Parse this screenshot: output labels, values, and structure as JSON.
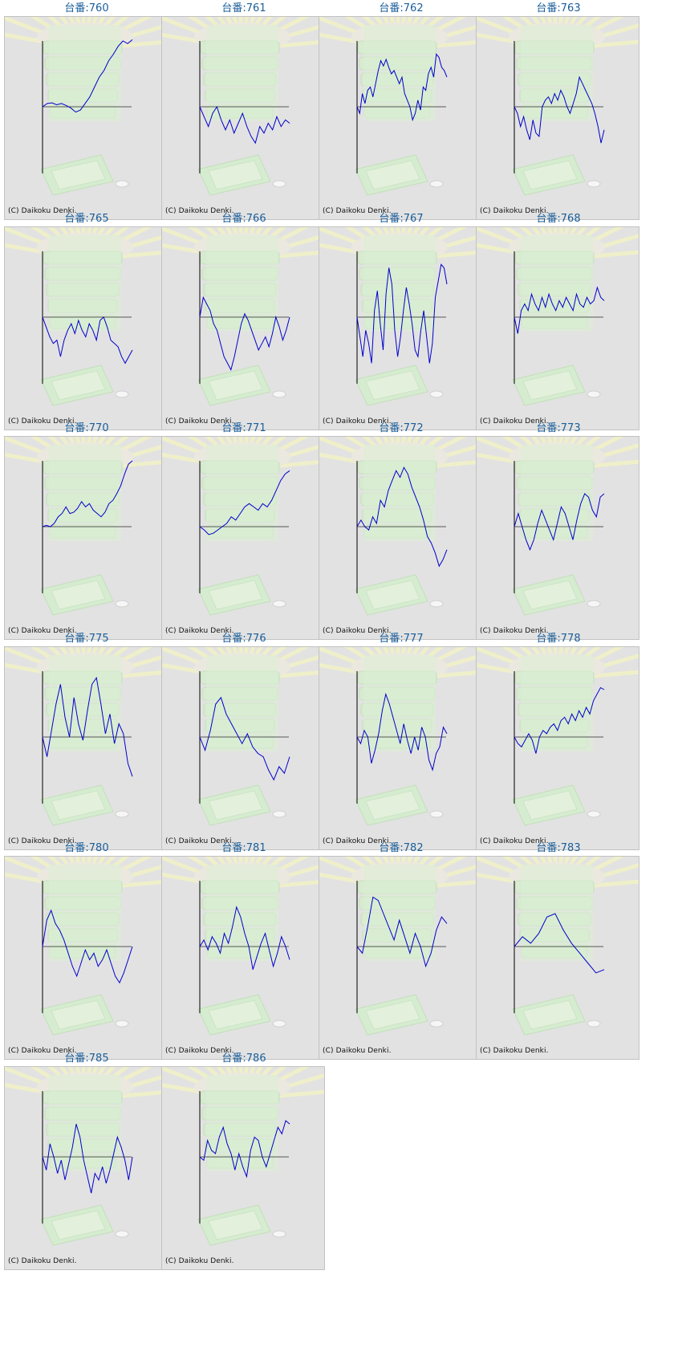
{
  "copyright": "(C) Daikoku Denki.",
  "colors": {
    "title": "#1a5e9a",
    "line": "#0000cc",
    "axis": "#000000",
    "panel_bg": "#e2e2e2"
  },
  "chart_data": [
    {
      "type": "line",
      "title": "台番:760",
      "values": [
        0,
        0.05,
        0.06,
        0.03,
        0.05,
        0.02,
        -0.02,
        -0.08,
        -0.05,
        0.05,
        0.15,
        0.3,
        0.45,
        0.55,
        0.7,
        0.8,
        0.92,
        1.0,
        0.96,
        1.02
      ]
    },
    {
      "type": "line",
      "title": "台番:761",
      "values": [
        0,
        -0.15,
        -0.3,
        -0.1,
        0,
        -0.2,
        -0.35,
        -0.2,
        -0.4,
        -0.25,
        -0.1,
        -0.3,
        -0.45,
        -0.55,
        -0.3,
        -0.4,
        -0.25,
        -0.35,
        -0.15,
        -0.3,
        -0.2,
        -0.25
      ]
    },
    {
      "type": "line",
      "title": "台番:762",
      "values": [
        0,
        -0.1,
        0.2,
        0.05,
        0.25,
        0.3,
        0.15,
        0.35,
        0.55,
        0.7,
        0.62,
        0.72,
        0.6,
        0.5,
        0.55,
        0.45,
        0.35,
        0.45,
        0.2,
        0.1,
        0.0,
        -0.2,
        -0.1,
        0.1,
        -0.05,
        0.3,
        0.25,
        0.5,
        0.6,
        0.45,
        0.8,
        0.75,
        0.6,
        0.55,
        0.45
      ]
    },
    {
      "type": "line",
      "title": "台番:763",
      "values": [
        0,
        -0.1,
        -0.3,
        -0.15,
        -0.35,
        -0.5,
        -0.2,
        -0.4,
        -0.45,
        0.0,
        0.1,
        0.15,
        0.05,
        0.2,
        0.1,
        0.25,
        0.15,
        0.0,
        -0.1,
        0.05,
        0.2,
        0.45,
        0.35,
        0.25,
        0.15,
        0.05,
        -0.1,
        -0.3,
        -0.55,
        -0.35
      ]
    },
    {
      "type": "line",
      "title": "台番:765",
      "values": [
        0,
        -0.15,
        -0.3,
        -0.4,
        -0.35,
        -0.6,
        -0.35,
        -0.2,
        -0.1,
        -0.25,
        -0.05,
        -0.2,
        -0.3,
        -0.1,
        -0.2,
        -0.35,
        -0.05,
        0.0,
        -0.15,
        -0.35,
        -0.4,
        -0.45,
        -0.6,
        -0.7,
        -0.6,
        -0.5
      ]
    },
    {
      "type": "line",
      "title": "台番:766",
      "values": [
        0,
        0.3,
        0.2,
        0.1,
        -0.1,
        -0.2,
        -0.4,
        -0.6,
        -0.7,
        -0.8,
        -0.6,
        -0.35,
        -0.1,
        0.05,
        -0.05,
        -0.2,
        -0.35,
        -0.5,
        -0.4,
        -0.3,
        -0.45,
        -0.25,
        0.0,
        -0.15,
        -0.35,
        -0.2,
        0.0
      ]
    },
    {
      "type": "line",
      "title": "台番:767",
      "values": [
        0,
        -0.3,
        -0.6,
        -0.2,
        -0.4,
        -0.7,
        0.1,
        0.4,
        -0.1,
        -0.5,
        0.35,
        0.75,
        0.5,
        -0.2,
        -0.6,
        -0.3,
        0.1,
        0.45,
        0.2,
        -0.1,
        -0.5,
        -0.6,
        -0.2,
        0.1,
        -0.3,
        -0.7,
        -0.4,
        0.3,
        0.55,
        0.8,
        0.75,
        0.5
      ]
    },
    {
      "type": "line",
      "title": "台番:768",
      "values": [
        0,
        -0.25,
        0.1,
        0.2,
        0.1,
        0.35,
        0.2,
        0.1,
        0.3,
        0.15,
        0.35,
        0.2,
        0.1,
        0.25,
        0.15,
        0.3,
        0.2,
        0.1,
        0.35,
        0.2,
        0.15,
        0.3,
        0.2,
        0.25,
        0.45,
        0.3,
        0.25
      ]
    },
    {
      "type": "line",
      "title": "台番:770",
      "values": [
        0,
        0.02,
        0.0,
        0.05,
        0.15,
        0.2,
        0.3,
        0.2,
        0.22,
        0.28,
        0.38,
        0.3,
        0.35,
        0.25,
        0.2,
        0.15,
        0.22,
        0.35,
        0.4,
        0.5,
        0.62,
        0.8,
        0.95,
        1.0
      ]
    },
    {
      "type": "line",
      "title": "台番:771",
      "values": [
        0,
        -0.05,
        -0.12,
        -0.1,
        -0.05,
        0.0,
        0.05,
        0.15,
        0.1,
        0.2,
        0.3,
        0.35,
        0.3,
        0.25,
        0.35,
        0.3,
        0.4,
        0.55,
        0.7,
        0.8,
        0.85
      ]
    },
    {
      "type": "line",
      "title": "台番:772",
      "values": [
        0,
        0.1,
        0.0,
        -0.05,
        0.15,
        0.05,
        0.4,
        0.3,
        0.55,
        0.7,
        0.85,
        0.75,
        0.9,
        0.8,
        0.6,
        0.45,
        0.3,
        0.1,
        -0.15,
        -0.25,
        -0.4,
        -0.6,
        -0.5,
        -0.35
      ]
    },
    {
      "type": "line",
      "title": "台番:773",
      "values": [
        0,
        0.2,
        0.0,
        -0.2,
        -0.35,
        -0.2,
        0.05,
        0.25,
        0.1,
        -0.05,
        -0.2,
        0.05,
        0.3,
        0.2,
        0.0,
        -0.2,
        0.1,
        0.35,
        0.5,
        0.45,
        0.25,
        0.15,
        0.45,
        0.5
      ]
    },
    {
      "type": "line",
      "title": "台番:775",
      "values": [
        0,
        -0.3,
        0.1,
        0.5,
        0.8,
        0.3,
        0.0,
        0.6,
        0.2,
        -0.05,
        0.4,
        0.8,
        0.9,
        0.5,
        0.05,
        0.35,
        -0.1,
        0.2,
        0.05,
        -0.4,
        -0.6
      ]
    },
    {
      "type": "line",
      "title": "台番:776",
      "values": [
        0,
        -0.2,
        0.1,
        0.5,
        0.6,
        0.35,
        0.2,
        0.05,
        -0.1,
        0.05,
        -0.15,
        -0.25,
        -0.3,
        -0.5,
        -0.65,
        -0.45,
        -0.55,
        -0.3
      ]
    },
    {
      "type": "line",
      "title": "台番:777",
      "values": [
        0,
        -0.1,
        0.1,
        0.0,
        -0.4,
        -0.2,
        0.05,
        0.4,
        0.65,
        0.5,
        0.3,
        0.1,
        -0.1,
        0.2,
        -0.05,
        -0.25,
        0.0,
        -0.2,
        0.15,
        0.0,
        -0.35,
        -0.5,
        -0.25,
        -0.15,
        0.15,
        0.05
      ]
    },
    {
      "type": "line",
      "title": "台番:778",
      "values": [
        0,
        -0.1,
        -0.15,
        -0.05,
        0.05,
        -0.05,
        -0.25,
        0.0,
        0.1,
        0.05,
        0.15,
        0.2,
        0.1,
        0.25,
        0.3,
        0.2,
        0.35,
        0.25,
        0.4,
        0.3,
        0.45,
        0.35,
        0.55,
        0.65,
        0.75,
        0.72
      ]
    },
    {
      "type": "line",
      "title": "台番:780",
      "values": [
        0,
        0.4,
        0.55,
        0.35,
        0.25,
        0.1,
        -0.1,
        -0.3,
        -0.45,
        -0.25,
        -0.05,
        -0.2,
        -0.1,
        -0.3,
        -0.2,
        -0.05,
        -0.25,
        -0.45,
        -0.55,
        -0.4,
        -0.2,
        0.0
      ]
    },
    {
      "type": "line",
      "title": "台番:781",
      "values": [
        0,
        0.1,
        -0.05,
        0.15,
        0.05,
        -0.1,
        0.2,
        0.05,
        0.3,
        0.6,
        0.45,
        0.2,
        0.0,
        -0.35,
        -0.15,
        0.05,
        0.2,
        -0.05,
        -0.3,
        -0.1,
        0.15,
        0.0,
        -0.2
      ]
    },
    {
      "type": "line",
      "title": "台番:782",
      "values": [
        0,
        -0.1,
        0.3,
        0.75,
        0.7,
        0.5,
        0.3,
        0.1,
        0.4,
        0.15,
        -0.1,
        0.2,
        0.0,
        -0.3,
        -0.1,
        0.25,
        0.45,
        0.35
      ]
    },
    {
      "type": "line",
      "title": "台番:783",
      "values": [
        0,
        0.15,
        0.05,
        0.2,
        0.45,
        0.5,
        0.25,
        0.05,
        -0.1,
        -0.25,
        -0.4,
        -0.35
      ]
    },
    {
      "type": "line",
      "title": "台番:785",
      "values": [
        0,
        -0.2,
        0.2,
        0.0,
        -0.25,
        -0.05,
        -0.35,
        -0.1,
        0.15,
        0.5,
        0.3,
        -0.05,
        -0.3,
        -0.55,
        -0.25,
        -0.35,
        -0.15,
        -0.4,
        -0.2,
        0.05,
        0.3,
        0.15,
        -0.05,
        -0.35,
        0.0
      ]
    },
    {
      "type": "line",
      "title": "台番:786",
      "values": [
        0,
        -0.05,
        0.25,
        0.1,
        0.05,
        0.3,
        0.45,
        0.2,
        0.05,
        -0.2,
        0.05,
        -0.15,
        -0.3,
        0.1,
        0.3,
        0.25,
        0.0,
        -0.15,
        0.05,
        0.25,
        0.45,
        0.35,
        0.55,
        0.5
      ]
    }
  ]
}
